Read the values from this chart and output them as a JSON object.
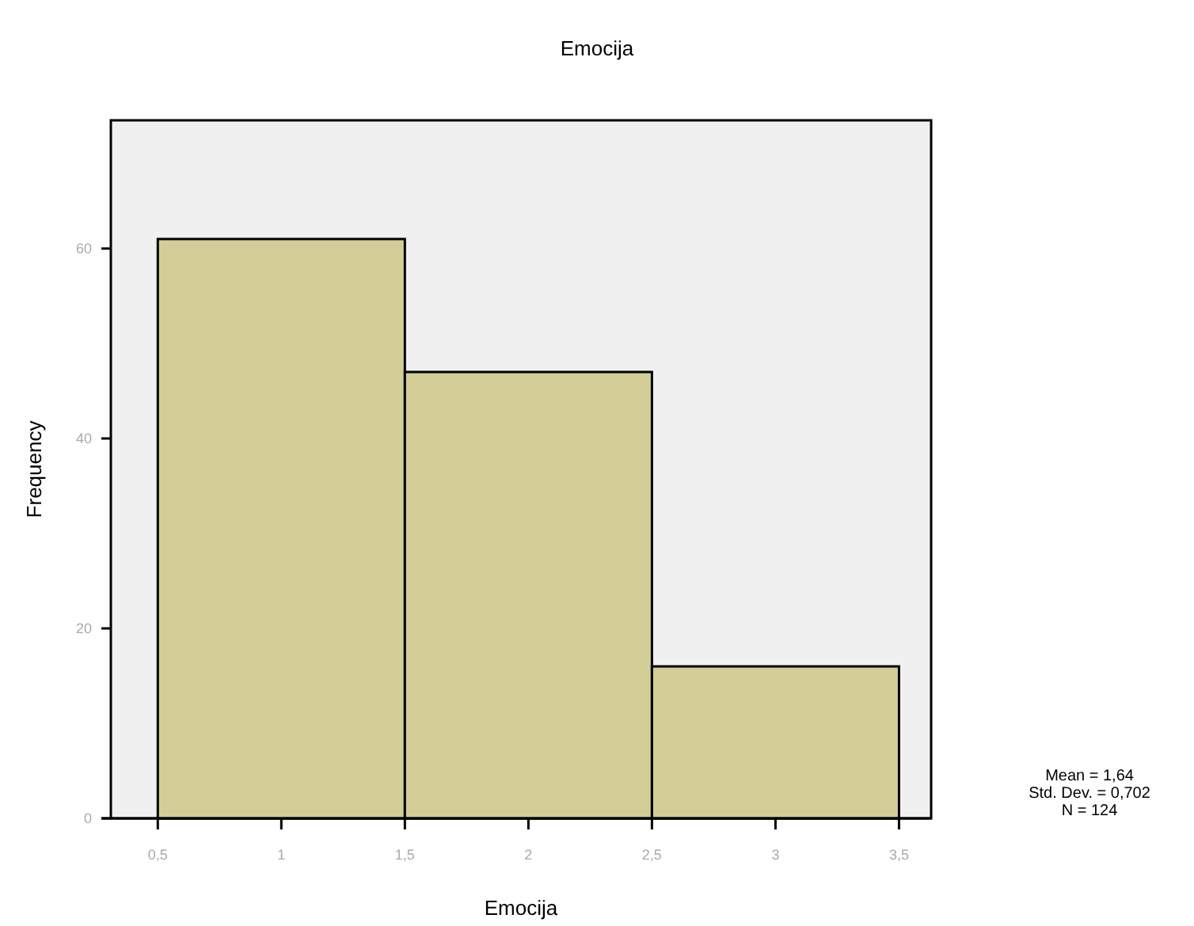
{
  "chart_data": {
    "type": "histogram",
    "title": "Emocija",
    "xlabel": "Emocija",
    "ylabel": "Frequency",
    "bins": [
      0.5,
      1.5,
      2.5,
      3.5
    ],
    "values": [
      61,
      47,
      16
    ],
    "color": "#d3ce97",
    "xlim": [
      0.31,
      3.63
    ],
    "xticks": [
      {
        "value": 0.5,
        "label": "0,5"
      },
      1,
      {
        "value": 1.5,
        "label": "1,5"
      },
      2,
      {
        "value": 2.5,
        "label": "2,5"
      },
      3,
      {
        "value": 3.5,
        "label": "3,5"
      }
    ],
    "ylim": [
      0,
      73.5
    ],
    "yticks": [
      0,
      20,
      40,
      60
    ],
    "annotations": [
      "Mean = 1,64",
      "Std. Dev. = 0,702",
      "N = 124"
    ]
  }
}
